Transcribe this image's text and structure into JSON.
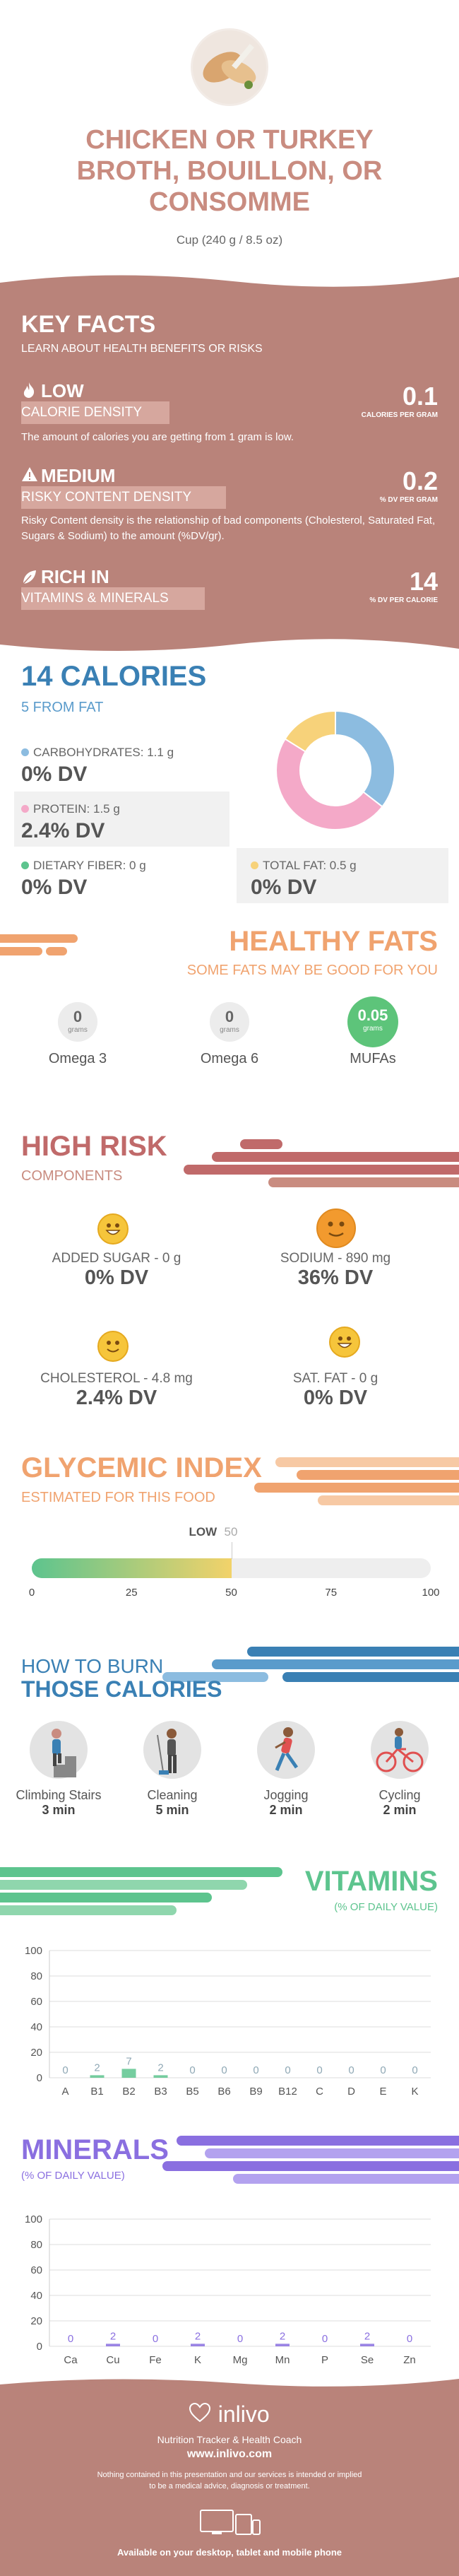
{
  "header": {
    "title_lines": [
      "CHICKEN OR TURKEY",
      "BROTH, BOUILLON, OR",
      "CONSOMME"
    ],
    "serving": "Cup (240 g / 8.5 oz)"
  },
  "key_facts": {
    "title": "KEY FACTS",
    "subtitle": "LEARN ABOUT HEALTH BENEFITS OR RISKS",
    "calorie_density": {
      "level": "LOW",
      "label": "CALORIE DENSITY",
      "description": "The amount of calories you are getting from 1 gram is low.",
      "value": "0.1",
      "unit": "CALORIES PER GRAM"
    },
    "risky_content": {
      "level": "MEDIUM",
      "label": "RISKY CONTENT DENSITY",
      "description": "Risky Content density is the relationship of bad components (Cholesterol, Saturated Fat, Sugars & Sodium) to the amount (%DV/gr).",
      "value": "0.2",
      "unit": "% DV PER GRAM"
    },
    "rich_in": {
      "level": "RICH IN",
      "label": "VITAMINS & MINERALS",
      "value": "14",
      "unit": "% DV PER CALORIE"
    }
  },
  "calories": {
    "title": "14 CALORIES",
    "from_fat": "5 FROM FAT",
    "nutrients": [
      {
        "label": "CARBOHYDRATES: 1.1 g",
        "dv": "0% DV",
        "color": "#8cbce0"
      },
      {
        "label": "PROTEIN: 1.5 g",
        "dv": "2.4% DV",
        "color": "#f4a9c8"
      },
      {
        "label": "DIETARY FIBER: 0 g",
        "dv": "0% DV",
        "color": "#5dc48e"
      },
      {
        "label": "TOTAL FAT: 0.5 g",
        "dv": "0% DV",
        "color": "#f7d27a"
      }
    ],
    "donut": [
      {
        "name": "carbohydrates",
        "value": 1.1,
        "color": "#8cbce0"
      },
      {
        "name": "protein",
        "value": 1.5,
        "color": "#f4a9c8"
      },
      {
        "name": "fat",
        "value": 0.5,
        "color": "#f7d27a"
      }
    ]
  },
  "healthy_fats": {
    "title": "HEALTHY FATS",
    "subtitle": "SOME FATS MAY BE GOOD FOR YOU",
    "unit": "grams",
    "items": [
      {
        "name": "Omega 3",
        "value": "0",
        "color": "#ececec"
      },
      {
        "name": "Omega 6",
        "value": "0",
        "color": "#ececec"
      },
      {
        "name": "MUFAs",
        "value": "0.05",
        "color": "#5dc47a"
      }
    ]
  },
  "high_risk": {
    "title": "HIGH RISK",
    "subtitle": "COMPONENTS",
    "items": [
      {
        "label": "ADDED SUGAR - 0 g",
        "dv": "0% DV"
      },
      {
        "label": "SODIUM - 890 mg",
        "dv": "36% DV"
      },
      {
        "label": "CHOLESTEROL - 4.8 mg",
        "dv": "2.4% DV"
      },
      {
        "label": "SAT. FAT - 0 g",
        "dv": "0% DV"
      }
    ]
  },
  "glycemic": {
    "title": "GLYCEMIC INDEX",
    "subtitle": "ESTIMATED FOR THIS FOOD",
    "level": "LOW",
    "value": "50",
    "value_num": 50,
    "ticks": [
      "0",
      "25",
      "50",
      "75",
      "100"
    ]
  },
  "burn": {
    "title_1": "HOW TO BURN",
    "title_2": "THOSE CALORIES",
    "activities": [
      {
        "name": "Climbing Stairs",
        "time": "3 min"
      },
      {
        "name": "Cleaning",
        "time": "5 min"
      },
      {
        "name": "Jogging",
        "time": "2 min"
      },
      {
        "name": "Cycling",
        "time": "2 min"
      }
    ]
  },
  "chart_data": [
    {
      "type": "bar",
      "title": "VITAMINS",
      "subtitle": "(% OF DAILY VALUE)",
      "categories": [
        "A",
        "B1",
        "B2",
        "B3",
        "B5",
        "B6",
        "B9",
        "B12",
        "C",
        "D",
        "E",
        "K"
      ],
      "values": [
        0,
        2,
        7,
        2,
        0,
        0,
        0,
        0,
        0,
        0,
        0,
        0
      ],
      "ylim": [
        0,
        100
      ],
      "yticks": [
        "0",
        "20",
        "40",
        "60",
        "80",
        "100"
      ],
      "color": "#5dc48e"
    },
    {
      "type": "bar",
      "title": "MINERALS",
      "subtitle": "(% OF DAILY VALUE)",
      "categories": [
        "Ca",
        "Cu",
        "Fe",
        "K",
        "Mg",
        "Mn",
        "P",
        "Se",
        "Zn"
      ],
      "values": [
        0,
        2,
        0,
        2,
        0,
        2,
        0,
        2,
        0
      ],
      "ylim": [
        0,
        100
      ],
      "yticks": [
        "0",
        "20",
        "40",
        "60",
        "80",
        "100"
      ],
      "color": "#8a6fe0"
    }
  ],
  "footer": {
    "brand": "inlivo",
    "tagline": "Nutrition Tracker & Health Coach",
    "url": "www.inlivo.com",
    "disclaimer_1": "Nothing contained in this presentation and our services is intended or implied",
    "disclaimer_2": "to be a medical advice, diagnosis or treatment.",
    "available": "Available on your desktop, tablet and mobile phone"
  }
}
